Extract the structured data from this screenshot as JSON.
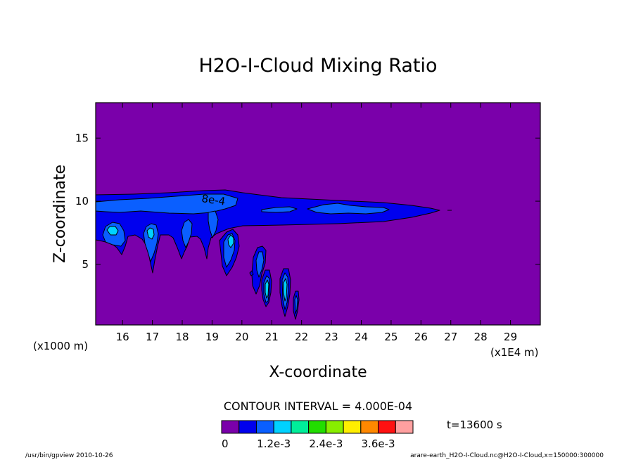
{
  "chart_data": {
    "type": "filled-contour",
    "title": "H2O-I-Cloud Mixing Ratio",
    "xlabel": "X-coordinate",
    "ylabel": "Z-coordinate",
    "x_unit_label": "(x1E4 m)",
    "y_unit_label": "(x1000 m)",
    "xlim": [
      15.1,
      30.0
    ],
    "ylim": [
      0.2,
      17.8
    ],
    "x_ticks": [
      "16",
      "17",
      "18",
      "19",
      "20",
      "21",
      "22",
      "23",
      "24",
      "25",
      "26",
      "27",
      "28",
      "29"
    ],
    "y_ticks": [
      "5",
      "10",
      "15"
    ],
    "contour_interval_text": "CONTOUR INTERVAL = 4.000E-04",
    "contour_label": "8e-4",
    "time_text": "t=13600 s",
    "colorbar": {
      "colors": [
        "#7a00aa",
        "#0000ee",
        "#0a5fff",
        "#00d2ff",
        "#00ee9a",
        "#22dd00",
        "#88ee00",
        "#ffee00",
        "#ff8800",
        "#ff1111",
        "#ffa0a0"
      ],
      "tick_labels": [
        "0",
        "1.2e-3",
        "2.4e-3",
        "3.6e-3"
      ],
      "tick_values": [
        0,
        0.0012,
        0.0024,
        0.0036
      ]
    },
    "regions": [
      {
        "level": 1,
        "desc": "upper cloud band",
        "x_range": [
          15.1,
          27.0
        ],
        "z_range": [
          8.0,
          10.6
        ]
      },
      {
        "level": 2,
        "desc": "upper layer core",
        "x_range": [
          15.1,
          20.0
        ],
        "z_range": [
          9.0,
          10.5
        ]
      },
      {
        "level": 3,
        "desc": "cell near x=15.5",
        "center": [
          15.55,
          7.6
        ],
        "peak": 0.0012
      },
      {
        "level": 3,
        "desc": "cell near x=16.9",
        "center": [
          16.9,
          7.3
        ],
        "peak": 0.0012
      },
      {
        "level": 3,
        "desc": "cell near x=19.6",
        "center": [
          19.6,
          6.8
        ],
        "peak": 0.0012
      },
      {
        "level": 3,
        "desc": "fall streak near x=21.5",
        "center": [
          21.5,
          3.0
        ],
        "peak": 0.0012
      }
    ]
  },
  "footer": {
    "left": "/usr/bin/gpview   2010-10-26",
    "right": "arare-earth_H2O-I-Cloud.nc@H2O-I-Cloud,x=150000:300000"
  }
}
